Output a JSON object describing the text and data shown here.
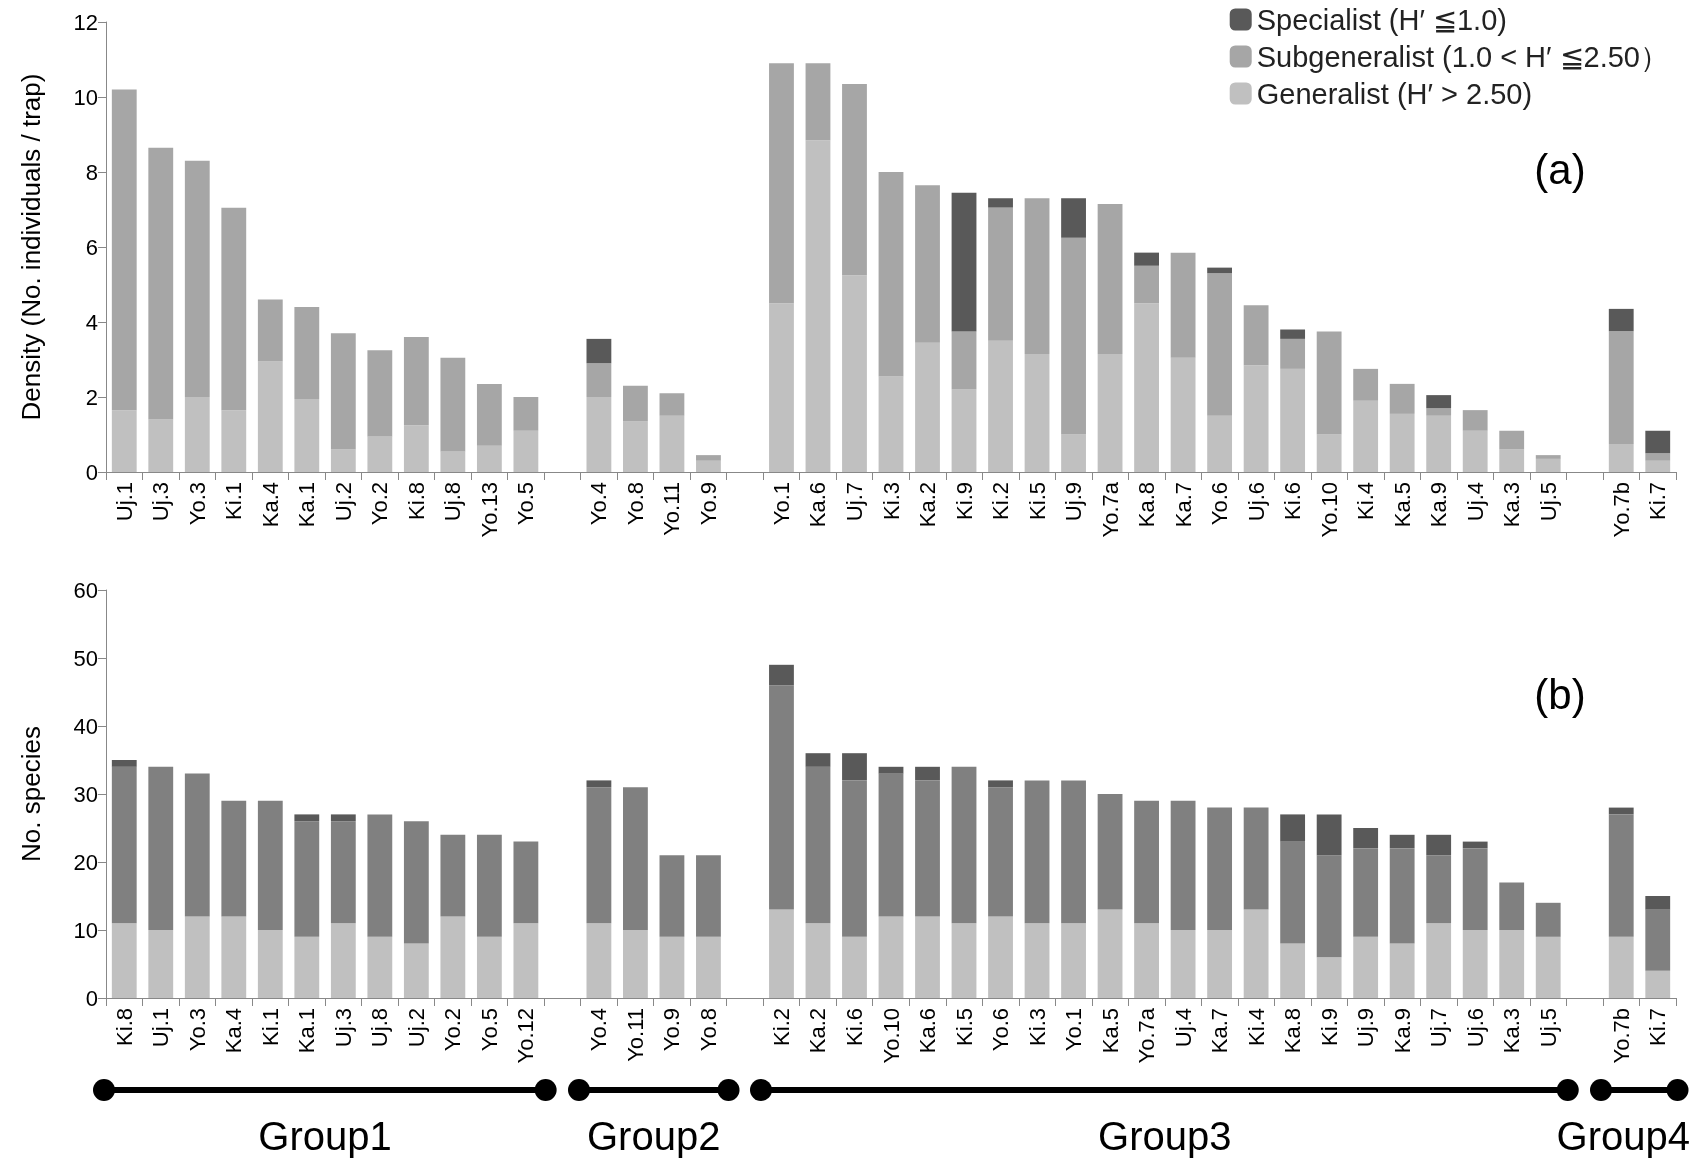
{
  "chart_data": [
    {
      "type": "bar",
      "stacked": true,
      "ylabel": "Density (No. individuals / trap)",
      "ylim": [
        0,
        12
      ],
      "yticks": [
        0,
        2,
        4,
        6,
        8,
        10,
        12
      ],
      "grid": false,
      "legend": "top right",
      "annotations": [
        "(a)"
      ],
      "categories": [
        "Uj.1",
        "Uj.3",
        "Yo.3",
        "Ki.1",
        "Ka.4",
        "Ka.1",
        "Uj.2",
        "Yo.2",
        "Ki.8",
        "Uj.8",
        "Yo.13",
        "Yo.5",
        null,
        "Yo.4",
        "Yo.8",
        "Yo.11",
        "Yo.9",
        null,
        "Yo.1",
        "Ka.6",
        "Uj.7",
        "Ki.3",
        "Ka.2",
        "Ki.9",
        "Ki.2",
        "Ki.5",
        "Uj.9",
        "Yo.7a",
        "Ka.8",
        "Ka.7",
        "Yo.6",
        "Uj.6",
        "Ki.6",
        "Yo.10",
        "Ki.4",
        "Ka.5",
        "Ka.9",
        "Uj.4",
        "Ka.3",
        "Uj.5",
        null,
        "Yo.7b",
        "Ki.7"
      ],
      "series": [
        {
          "name": "Generalist (H′ > 2.50)",
          "color": "#c0c0c0",
          "values": [
            1.65,
            1.4,
            2.0,
            1.65,
            2.95,
            1.95,
            0.6,
            0.95,
            1.25,
            0.55,
            0.7,
            1.1,
            null,
            2.0,
            1.35,
            1.5,
            0.3,
            null,
            4.5,
            8.85,
            5.25,
            2.55,
            3.45,
            2.2,
            3.5,
            3.15,
            1.0,
            3.15,
            4.5,
            3.05,
            1.5,
            2.85,
            2.75,
            1.0,
            1.9,
            1.55,
            1.5,
            1.1,
            0.6,
            0.35,
            null,
            0.75,
            0.3
          ]
        },
        {
          "name": "Subgeneralist (1.0 < H′ ≦2.50）",
          "color": "#a6a6a6",
          "values": [
            8.55,
            7.25,
            6.3,
            5.4,
            1.65,
            2.45,
            3.1,
            2.3,
            2.35,
            2.5,
            1.65,
            0.9,
            null,
            0.9,
            0.95,
            0.6,
            0.15,
            null,
            6.4,
            2.05,
            5.1,
            5.45,
            4.2,
            1.55,
            3.55,
            4.15,
            5.25,
            4.0,
            1.0,
            2.8,
            3.8,
            1.6,
            0.8,
            2.75,
            0.85,
            0.8,
            0.2,
            0.55,
            0.5,
            0.1,
            null,
            3.0,
            0.2
          ]
        },
        {
          "name": "Specialist (H′ ≦1.0)",
          "color": "#595959",
          "values": [
            0,
            0,
            0,
            0,
            0,
            0,
            0,
            0,
            0,
            0,
            0,
            0,
            null,
            0.65,
            0,
            0,
            0,
            null,
            0,
            0,
            0,
            0,
            0,
            3.7,
            0.25,
            0,
            1.05,
            0,
            0.35,
            0,
            0.15,
            0,
            0.25,
            0,
            0,
            0,
            0.35,
            0,
            0,
            0,
            null,
            0.6,
            0.6
          ]
        }
      ]
    },
    {
      "type": "bar",
      "stacked": true,
      "ylabel": "No. species",
      "ylim": [
        0,
        60
      ],
      "yticks": [
        0,
        10,
        20,
        30,
        40,
        50,
        60
      ],
      "grid": false,
      "annotations": [
        "(b)",
        "Group1",
        "Group2",
        "Group3",
        "Group4"
      ],
      "categories": [
        "Ki.8",
        "Uj.1",
        "Yo.3",
        "Ka.4",
        "Ki.1",
        "Ka.1",
        "Uj.3",
        "Uj.8",
        "Uj.2",
        "Yo.2",
        "Yo.5",
        "Yo.12",
        null,
        "Yo.4",
        "Yo.11",
        "Yo.9",
        "Yo.8",
        null,
        "Ki.2",
        "Ka.2",
        "Ki.6",
        "Yo.10",
        "Ka.6",
        "Ki.5",
        "Yo.6",
        "Ki.3",
        "Yo.1",
        "Ka.5",
        "Yo.7a",
        "Uj.4",
        "Ka.7",
        "Ki.4",
        "Ka.8",
        "Ki.9",
        "Uj.9",
        "Ka.9",
        "Uj.7",
        "Uj.6",
        "Ka.3",
        "Uj.5",
        null,
        "Yo.7b",
        "Ki.7"
      ],
      "series": [
        {
          "color": "#c0c0c0",
          "values": [
            11,
            10,
            12,
            12,
            10,
            9,
            11,
            9,
            8,
            12,
            9,
            11,
            null,
            11,
            10,
            9,
            9,
            null,
            13,
            11,
            9,
            12,
            12,
            11,
            12,
            11,
            11,
            13,
            11,
            10,
            10,
            13,
            8,
            6,
            9,
            8,
            11,
            10,
            10,
            9,
            null,
            9,
            4
          ]
        },
        {
          "color": "#808080",
          "values": [
            23,
            24,
            21,
            17,
            19,
            17,
            15,
            18,
            18,
            12,
            15,
            12,
            null,
            20,
            21,
            12,
            12,
            null,
            33,
            23,
            23,
            21,
            20,
            23,
            19,
            21,
            21,
            17,
            18,
            19,
            18,
            15,
            15,
            15,
            13,
            14,
            10,
            12,
            7,
            5,
            null,
            18,
            9
          ]
        },
        {
          "color": "#595959",
          "values": [
            1,
            0,
            0,
            0,
            0,
            1,
            1,
            0,
            0,
            0,
            0,
            0,
            null,
            1,
            0,
            0,
            0,
            null,
            3,
            2,
            4,
            1,
            2,
            0,
            1,
            0,
            0,
            0,
            0,
            0,
            0,
            0,
            4,
            6,
            3,
            2,
            3,
            1,
            0,
            0,
            null,
            1,
            2
          ]
        }
      ]
    }
  ]
}
